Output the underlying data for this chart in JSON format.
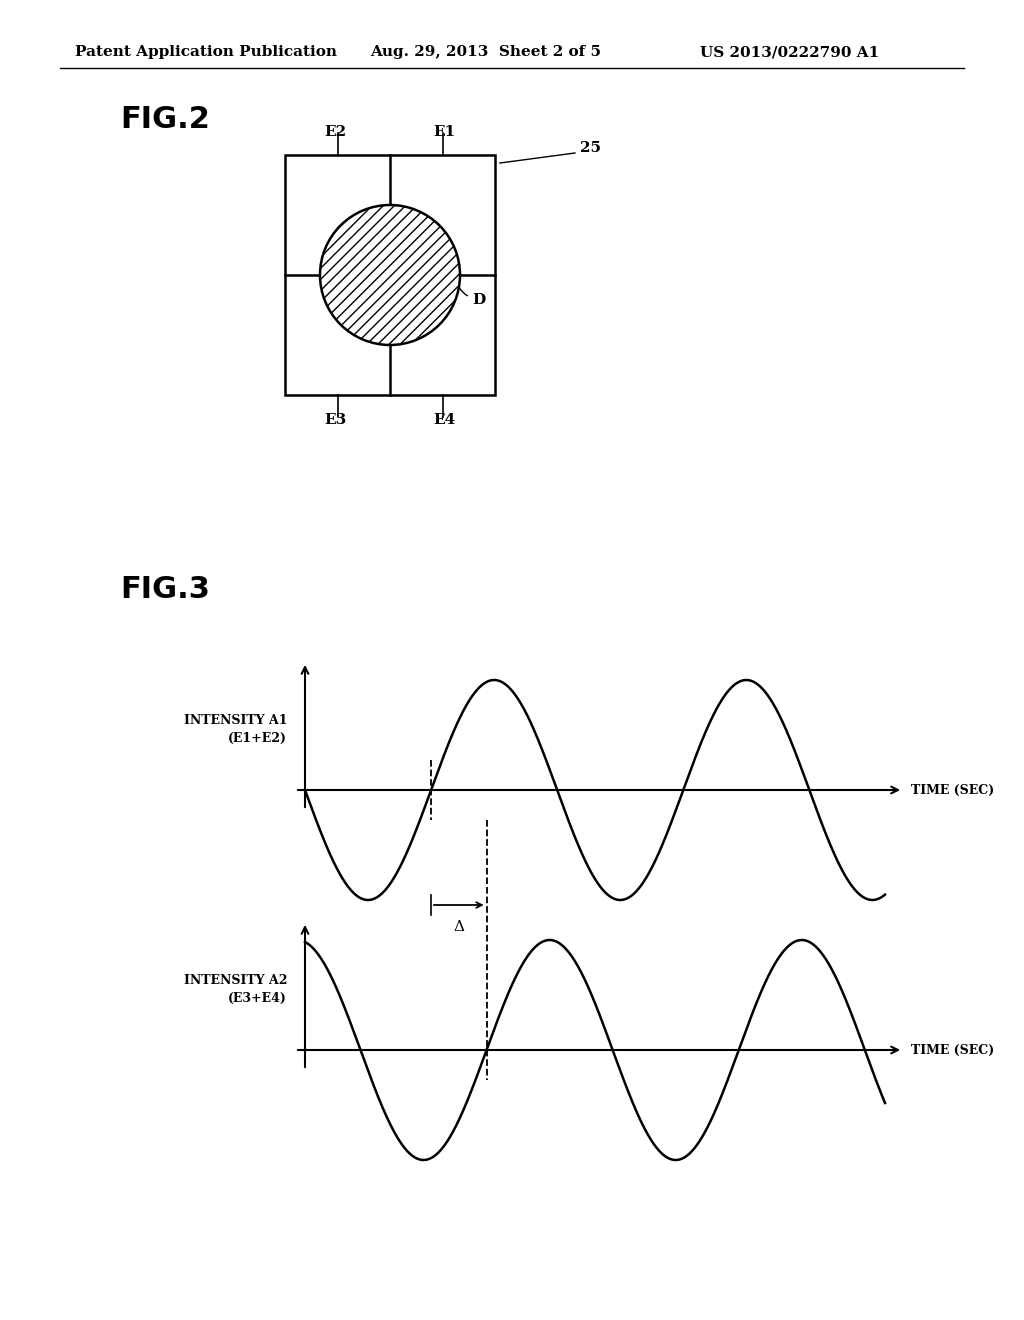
{
  "bg_color": "#ffffff",
  "header_left": "Patent Application Publication",
  "header_mid": "Aug. 29, 2013  Sheet 2 of 5",
  "header_right": "US 2013/0222790 A1",
  "fig2_label": "FIG.2",
  "fig3_label": "FIG.3",
  "label_25": "25",
  "label_E1": "E1",
  "label_E2": "E2",
  "label_E3": "E3",
  "label_E4": "E4",
  "label_D": "D",
  "label_delta": "Δ",
  "intensity_a1_label": "INTENSITY A1\n(E1+E2)",
  "intensity_a2_label": "INTENSITY A2\n(E3+E4)",
  "time_label": "TIME (SEC)",
  "line_color": "#000000",
  "hatch_pattern": "///",
  "font_size_header": 11,
  "font_size_fig": 22,
  "font_size_label": 11,
  "font_size_axis": 9
}
